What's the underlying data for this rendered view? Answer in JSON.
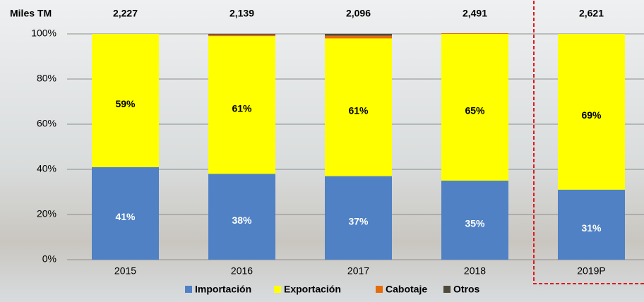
{
  "chart_data": {
    "type": "stacked_bar",
    "categories": [
      "2015",
      "2016",
      "2017",
      "2018",
      "2019P"
    ],
    "series": [
      {
        "name": "Importación",
        "color": "#4f81c4",
        "values": [
          41,
          38,
          37,
          35,
          31
        ],
        "value_labels": [
          "41%",
          "38%",
          "37%",
          "35%",
          "31%"
        ],
        "label_color": "#ffffff"
      },
      {
        "name": "Exportación",
        "color": "#ffff00",
        "values": [
          59,
          61,
          61,
          65,
          69
        ],
        "value_labels": [
          "59%",
          "61%",
          "61%",
          "65%",
          "69%"
        ],
        "label_color": "#000000"
      },
      {
        "name": "Cabotaje",
        "color": "#e46c0a",
        "values": [
          0,
          0.6,
          1.2,
          0.3,
          0
        ]
      },
      {
        "name": "Otros",
        "color": "#4d4a3a",
        "values": [
          0,
          0.4,
          0.8,
          0,
          0
        ]
      }
    ],
    "totals": {
      "label": "Miles TM",
      "values": [
        2227,
        2139,
        2096,
        2491,
        2621
      ],
      "value_labels": [
        "2,227",
        "2,139",
        "2,096",
        "2,491",
        "2,621"
      ]
    },
    "ylim": [
      0,
      100
    ],
    "yticks": [
      {
        "value": 0,
        "label": "0%"
      },
      {
        "value": 20,
        "label": "20%"
      },
      {
        "value": 40,
        "label": "40%"
      },
      {
        "value": 60,
        "label": "60%"
      },
      {
        "value": 80,
        "label": "80%"
      },
      {
        "value": 100,
        "label": "100%"
      }
    ],
    "grid": true,
    "legend": "bottom"
  }
}
